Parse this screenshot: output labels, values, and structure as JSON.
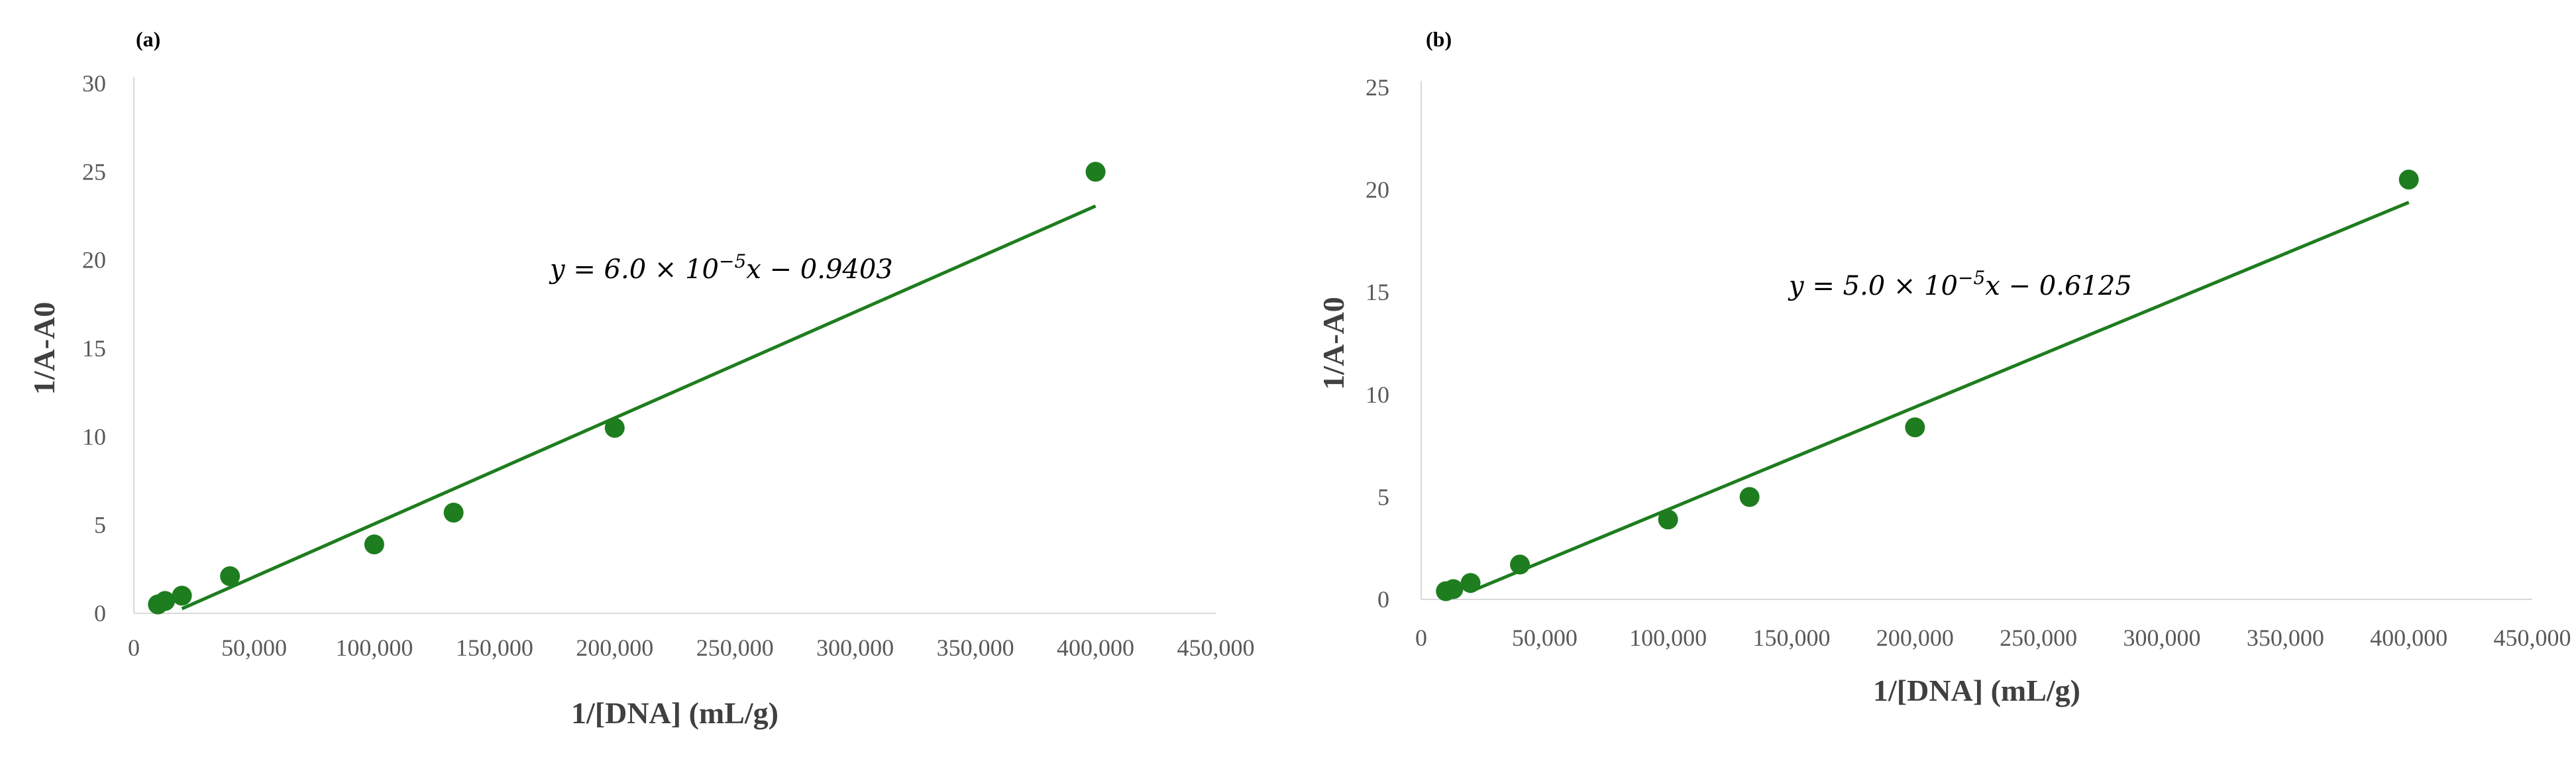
{
  "chart_data": [
    {
      "type": "scatter",
      "panel_label": "(a)",
      "xlabel": "1/[DNA] (mL/g)",
      "ylabel": "1/A-A0",
      "xlim": [
        0,
        450000
      ],
      "ylim": [
        0,
        30
      ],
      "x_ticks": [
        0,
        50000,
        100000,
        150000,
        200000,
        250000,
        300000,
        350000,
        400000,
        450000
      ],
      "x_tick_labels": [
        "0",
        "50,000",
        "100,000",
        "150,000",
        "200,000",
        "250,000",
        "300,000",
        "350,000",
        "400,000",
        "450,000"
      ],
      "y_ticks": [
        0,
        5,
        10,
        15,
        20,
        25,
        30
      ],
      "y_tick_labels": [
        "0",
        "5",
        "10",
        "15",
        "20",
        "25",
        "30"
      ],
      "grid": false,
      "color": "#1e7d1e",
      "points": [
        {
          "x": 10000,
          "y": 0.5
        },
        {
          "x": 13000,
          "y": 0.7
        },
        {
          "x": 20000,
          "y": 1.0
        },
        {
          "x": 40000,
          "y": 2.1
        },
        {
          "x": 100000,
          "y": 3.9
        },
        {
          "x": 133000,
          "y": 5.7
        },
        {
          "x": 200000,
          "y": 10.5
        },
        {
          "x": 400000,
          "y": 25.0
        }
      ],
      "trendline": {
        "slope": 6e-05,
        "intercept": -0.9403,
        "x_range": [
          20000,
          400000
        ]
      },
      "equation_text": {
        "prefix": "y = 6.0 × 10",
        "exp": "−5",
        "suffix": "x − 0.9403"
      }
    },
    {
      "type": "scatter",
      "panel_label": "(b)",
      "xlabel": "1/[DNA] (mL/g)",
      "ylabel": "1/A-A0",
      "xlim": [
        0,
        450000
      ],
      "ylim": [
        0,
        25
      ],
      "x_ticks": [
        0,
        50000,
        100000,
        150000,
        200000,
        250000,
        300000,
        350000,
        400000,
        450000
      ],
      "x_tick_labels": [
        "0",
        "50,000",
        "100,000",
        "150,000",
        "200,000",
        "250,000",
        "300,000",
        "350,000",
        "400,000",
        "450,000"
      ],
      "y_ticks": [
        0,
        5,
        10,
        15,
        20,
        25
      ],
      "y_tick_labels": [
        "0",
        "5",
        "10",
        "15",
        "20",
        "25"
      ],
      "grid": false,
      "color": "#1e7d1e",
      "points": [
        {
          "x": 10000,
          "y": 0.4
        },
        {
          "x": 13000,
          "y": 0.5
        },
        {
          "x": 20000,
          "y": 0.8
        },
        {
          "x": 40000,
          "y": 1.7
        },
        {
          "x": 100000,
          "y": 3.9
        },
        {
          "x": 133000,
          "y": 5.0
        },
        {
          "x": 200000,
          "y": 8.4
        },
        {
          "x": 400000,
          "y": 20.5
        }
      ],
      "trendline": {
        "slope": 5e-05,
        "intercept": -0.6125,
        "x_range": [
          20000,
          400000
        ]
      },
      "equation_text": {
        "prefix": "y = 5.0 × 10",
        "exp": "−5",
        "suffix": "x − 0.6125"
      }
    }
  ]
}
